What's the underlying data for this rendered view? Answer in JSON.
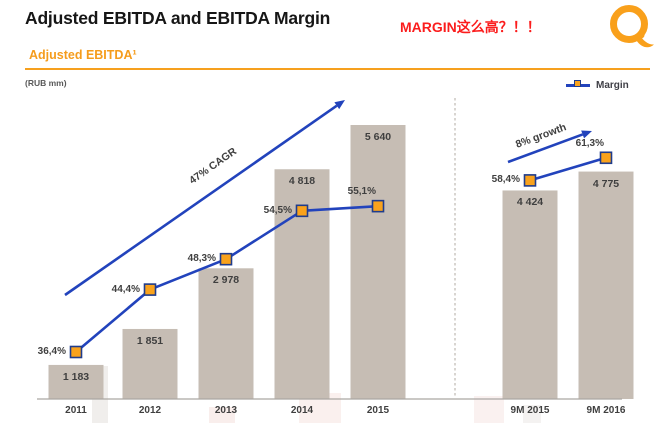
{
  "header": {
    "title": "Adjusted EBITDA and EBITDA Margin",
    "annotation": "MARGIN这么高？！！",
    "section_title": "Adjusted EBITDA¹",
    "units": "(RUB mm)",
    "logo": "qiwi-q-logo"
  },
  "legend": {
    "label": "Margin"
  },
  "colors": {
    "accent_orange": "#F6A01E",
    "annotation_red": "#FB1D1D",
    "bar": "#C6BDB4",
    "line_blue": "#2243BC",
    "marker_fill": "#F9A21C",
    "marker_border": "#1F3C8C",
    "axis_gray": "#ABA7A2",
    "divider_gray": "#CBC7C2",
    "label_gray": "#3F3F3F"
  },
  "chart_data": {
    "type": "bar",
    "subtype": "bar+line-combo",
    "title": "Adjusted EBITDA¹",
    "ylabel": "(RUB mm)",
    "bar_series_name": "Adjusted EBITDA",
    "line_series_name": "Margin",
    "legend_position": "top-right",
    "grid": false,
    "groups": [
      {
        "name": "annual",
        "annotation": "47% CAGR",
        "points": [
          {
            "category": "2011",
            "ebitda": 1183,
            "ebitda_label": "1 183",
            "margin_pct": 36.4,
            "margin_label": "36,4%"
          },
          {
            "category": "2012",
            "ebitda": 1851,
            "ebitda_label": "1 851",
            "margin_pct": 44.4,
            "margin_label": "44,4%"
          },
          {
            "category": "2013",
            "ebitda": 2978,
            "ebitda_label": "2 978",
            "margin_pct": 48.3,
            "margin_label": "48,3%"
          },
          {
            "category": "2014",
            "ebitda": 4818,
            "ebitda_label": "4 818",
            "margin_pct": 54.5,
            "margin_label": "54,5%"
          },
          {
            "category": "2015",
            "ebitda": 5640,
            "ebitda_label": "5 640",
            "margin_pct": 55.1,
            "margin_label": "55,1%"
          }
        ]
      },
      {
        "name": "nine-month",
        "annotation": "8% growth",
        "points": [
          {
            "category": "9M 2015",
            "ebitda": 4424,
            "ebitda_label": "4 424",
            "margin_pct": 58.4,
            "margin_label": "58,4%"
          },
          {
            "category": "9M 2016",
            "ebitda": 4775,
            "ebitda_label": "4 775",
            "margin_pct": 61.3,
            "margin_label": "61,3%"
          }
        ]
      }
    ]
  }
}
